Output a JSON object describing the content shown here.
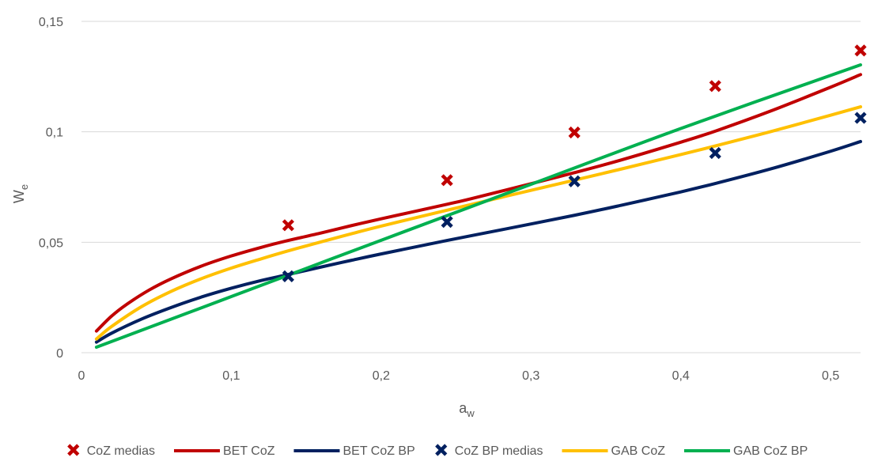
{
  "chart_data": {
    "type": "scatter",
    "title": "",
    "xlabel": "a",
    "xlabel_sub": "w",
    "ylabel": "W",
    "ylabel_sub": "e",
    "xlim": [
      0,
      0.52
    ],
    "ylim": [
      0,
      0.15
    ],
    "x_ticks": [
      0,
      0.1,
      0.2,
      0.3,
      0.4,
      0.5
    ],
    "x_tick_labels": [
      "0",
      "0,1",
      "0,2",
      "0,3",
      "0,4",
      "0,5"
    ],
    "y_ticks": [
      0,
      0.05,
      0.1,
      0.15
    ],
    "y_tick_labels": [
      "0",
      "0,05",
      "0,1",
      "0,15"
    ],
    "grid": "horizontal",
    "legend_position": "bottom",
    "series": [
      {
        "name": "CoZ medias",
        "kind": "marker",
        "color": "#C00000",
        "points": [
          [
            0.138,
            0.0577
          ],
          [
            0.244,
            0.0781
          ],
          [
            0.329,
            0.0997
          ],
          [
            0.423,
            0.1207
          ],
          [
            0.52,
            0.1368
          ]
        ]
      },
      {
        "name": "BET CoZ",
        "kind": "line",
        "color": "#C00000",
        "points": [
          [
            0.01,
            0.0098
          ],
          [
            0.02,
            0.0165
          ],
          [
            0.03,
            0.0218
          ],
          [
            0.045,
            0.0283
          ],
          [
            0.06,
            0.0335
          ],
          [
            0.08,
            0.0392
          ],
          [
            0.1,
            0.0438
          ],
          [
            0.12,
            0.0477
          ],
          [
            0.138,
            0.0508
          ],
          [
            0.16,
            0.0542
          ],
          [
            0.18,
            0.0575
          ],
          [
            0.2,
            0.0606
          ],
          [
            0.244,
            0.0672
          ],
          [
            0.26,
            0.0697
          ],
          [
            0.3,
            0.0765
          ],
          [
            0.329,
            0.0815
          ],
          [
            0.36,
            0.0872
          ],
          [
            0.4,
            0.0953
          ],
          [
            0.423,
            0.1003
          ],
          [
            0.46,
            0.1094
          ],
          [
            0.5,
            0.1202
          ],
          [
            0.52,
            0.1259
          ]
        ]
      },
      {
        "name": "BET CoZ BP",
        "kind": "line",
        "color": "#002060",
        "points": [
          [
            0.01,
            0.0048
          ],
          [
            0.02,
            0.0088
          ],
          [
            0.04,
            0.0152
          ],
          [
            0.06,
            0.0205
          ],
          [
            0.08,
            0.0252
          ],
          [
            0.1,
            0.0292
          ],
          [
            0.12,
            0.0327
          ],
          [
            0.138,
            0.0354
          ],
          [
            0.16,
            0.0388
          ],
          [
            0.18,
            0.0418
          ],
          [
            0.2,
            0.0447
          ],
          [
            0.244,
            0.0508
          ],
          [
            0.28,
            0.0556
          ],
          [
            0.329,
            0.0622
          ],
          [
            0.36,
            0.0667
          ],
          [
            0.4,
            0.0728
          ],
          [
            0.423,
            0.0766
          ],
          [
            0.46,
            0.0832
          ],
          [
            0.5,
            0.0912
          ],
          [
            0.52,
            0.0956
          ]
        ]
      },
      {
        "name": "CoZ BP medias",
        "kind": "marker",
        "color": "#002060",
        "points": [
          [
            0.138,
            0.0346
          ],
          [
            0.244,
            0.0592
          ],
          [
            0.329,
            0.0776
          ],
          [
            0.423,
            0.0904
          ],
          [
            0.52,
            0.1063
          ]
        ]
      },
      {
        "name": "GAB CoZ",
        "kind": "line",
        "color": "#FFC000",
        "points": [
          [
            0.01,
            0.0062
          ],
          [
            0.02,
            0.0118
          ],
          [
            0.04,
            0.0208
          ],
          [
            0.06,
            0.0278
          ],
          [
            0.08,
            0.0335
          ],
          [
            0.1,
            0.0383
          ],
          [
            0.12,
            0.0425
          ],
          [
            0.138,
            0.0461
          ],
          [
            0.16,
            0.0502
          ],
          [
            0.18,
            0.0538
          ],
          [
            0.2,
            0.0573
          ],
          [
            0.244,
            0.0645
          ],
          [
            0.28,
            0.0703
          ],
          [
            0.329,
            0.0781
          ],
          [
            0.36,
            0.0831
          ],
          [
            0.4,
            0.0897
          ],
          [
            0.423,
            0.0936
          ],
          [
            0.46,
            0.1001
          ],
          [
            0.5,
            0.1075
          ],
          [
            0.52,
            0.1113
          ]
        ]
      },
      {
        "name": "GAB CoZ BP",
        "kind": "line",
        "color": "#00B050",
        "points": [
          [
            0.01,
            0.0025
          ],
          [
            0.1,
            0.0254
          ],
          [
            0.2,
            0.0509
          ],
          [
            0.3,
            0.0762
          ],
          [
            0.4,
            0.1015
          ],
          [
            0.52,
            0.1303
          ]
        ]
      }
    ]
  }
}
